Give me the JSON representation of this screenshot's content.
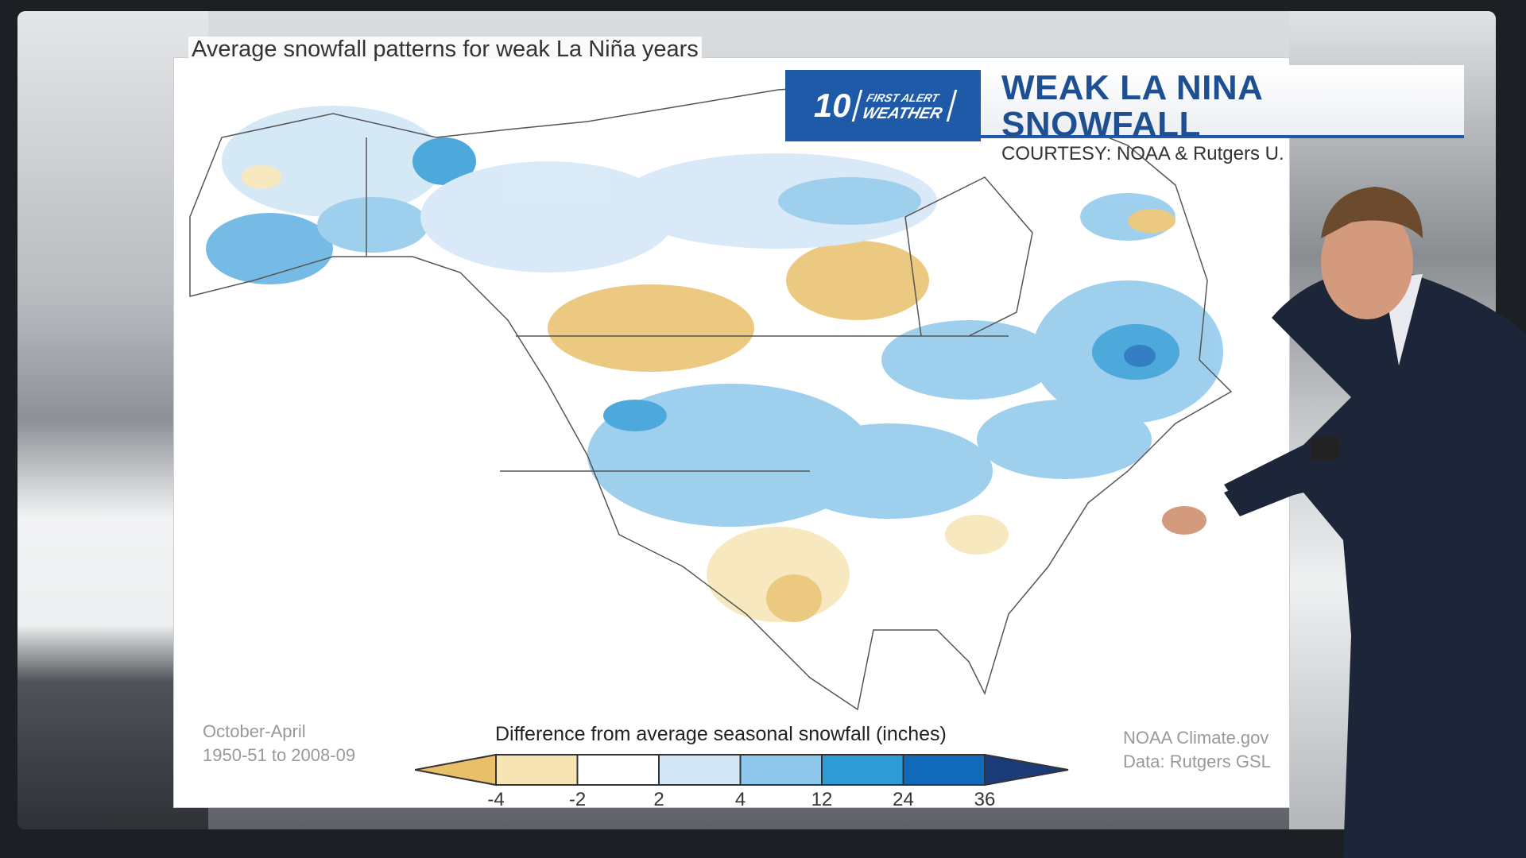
{
  "map": {
    "title": "Average snowfall patterns for weak La Niña years",
    "period_label": "October-April",
    "years_label": "1950-51 to 2008-09",
    "source_label": "NOAA Climate.gov",
    "data_label": "Data: Rutgers GSL"
  },
  "banner": {
    "logo_number": "10",
    "logo_line1": "FIRST ALERT",
    "logo_line2": "WEATHER",
    "title": "WEAK LA NINA SNOWFALL",
    "subtitle": "COURTESY: NOAA & Rutgers U.",
    "accent": "#1e5aa8"
  },
  "legend": {
    "title": "Difference from average seasonal snowfall (inches)",
    "ticks": [
      "-4",
      "-2",
      "2",
      "4",
      "12",
      "24",
      "36"
    ],
    "colors": [
      "#e8c06a",
      "#f6e4b4",
      "#ffffff",
      "#d3e6f6",
      "#8ec8ec",
      "#2e9bd6",
      "#1169b9",
      "#1b3a78"
    ]
  }
}
